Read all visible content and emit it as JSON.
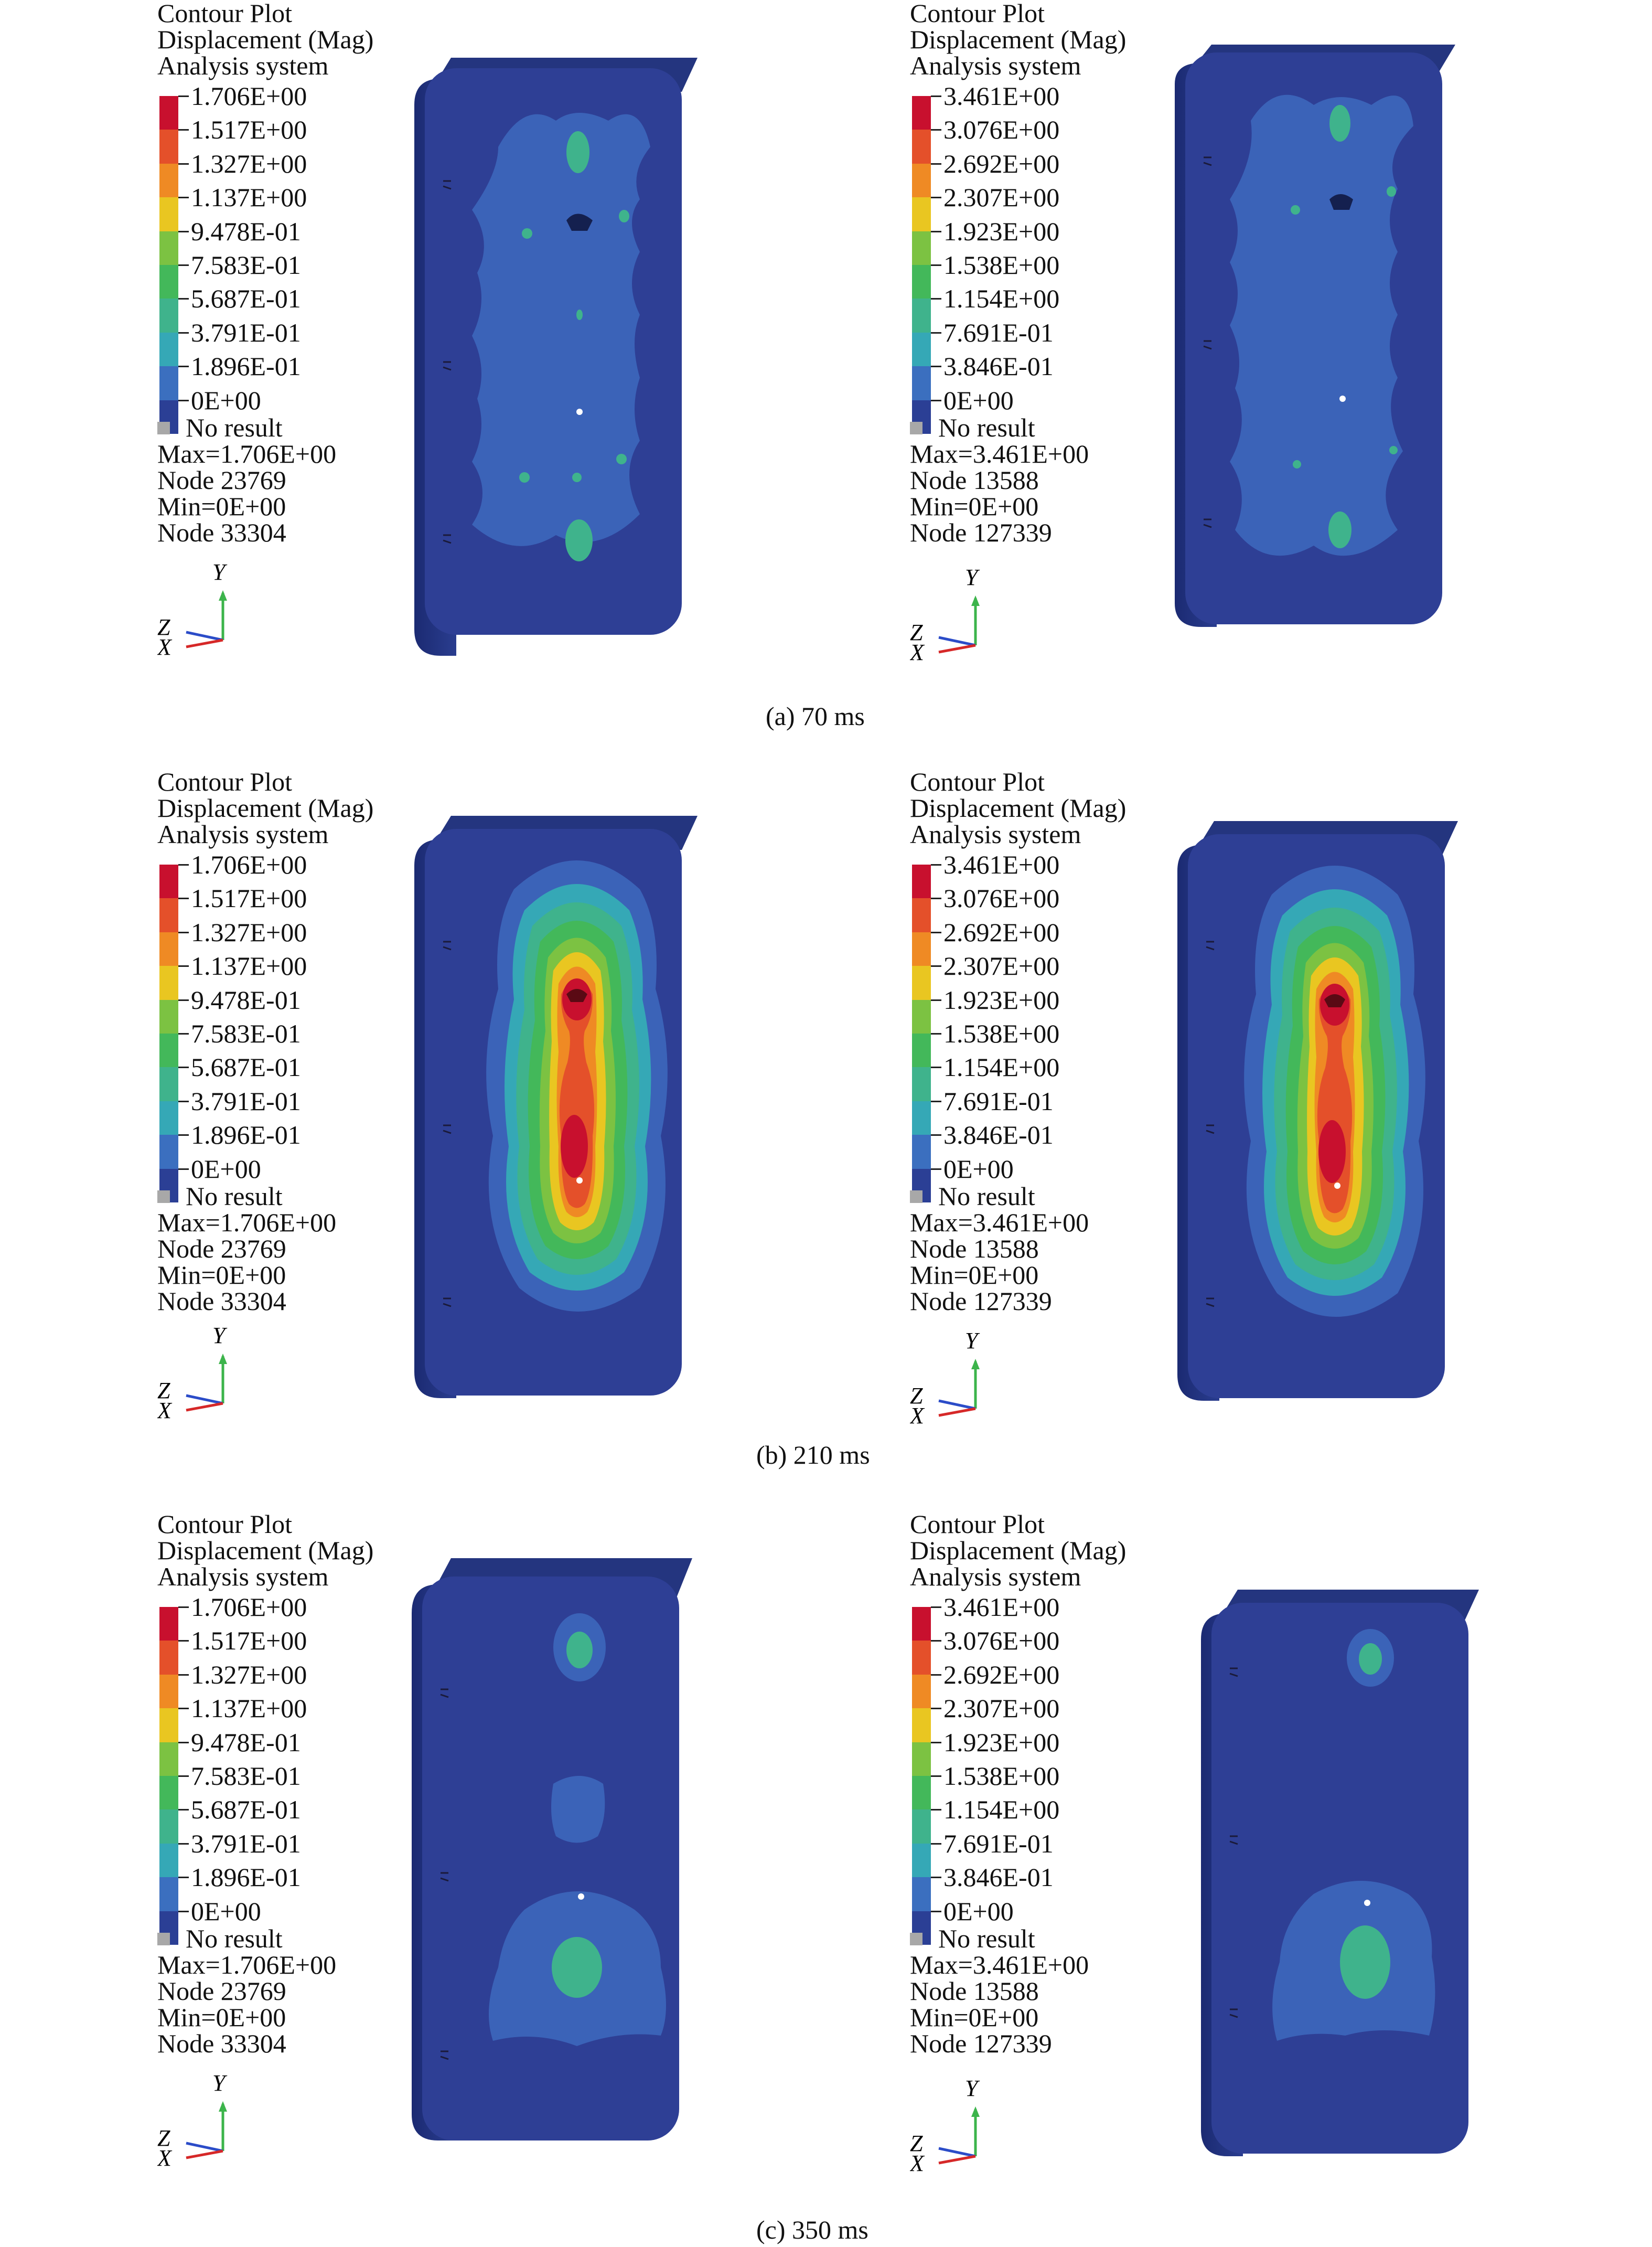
{
  "legend": {
    "title_lines": [
      "Contour Plot",
      "Displacement (Mag)",
      "Analysis system"
    ],
    "no_result_label": "No result",
    "colors": [
      "#c8102e",
      "#e4502a",
      "#ef8a24",
      "#e9c621",
      "#7cc242",
      "#43b85a",
      "#3fb38c",
      "#35a8b6",
      "#3b6fbf",
      "#2b3f95"
    ]
  },
  "triad_labels": {
    "y": "Y",
    "z": "Z",
    "x": "X"
  },
  "sets": [
    {
      "labels": [
        "1.706E+00",
        "1.517E+00",
        "1.327E+00",
        "1.137E+00",
        "9.478E-01",
        "7.583E-01",
        "5.687E-01",
        "3.791E-01",
        "1.896E-01",
        "0E+00"
      ],
      "max": "Max=1.706E+00",
      "max_node": "Node 23769",
      "min": "Min=0E+00",
      "min_node": "Node 33304"
    },
    {
      "labels": [
        "3.461E+00",
        "3.076E+00",
        "2.692E+00",
        "2.307E+00",
        "1.923E+00",
        "1.538E+00",
        "1.154E+00",
        "7.691E-01",
        "3.846E-01",
        "0E+00"
      ],
      "max": "Max=3.461E+00",
      "max_node": "Node 13588",
      "min": "Min=0E+00",
      "min_node": "Node 127339"
    }
  ],
  "captions": [
    "(a) 70 ms",
    "(b) 210 ms",
    "(c) 350 ms"
  ]
}
